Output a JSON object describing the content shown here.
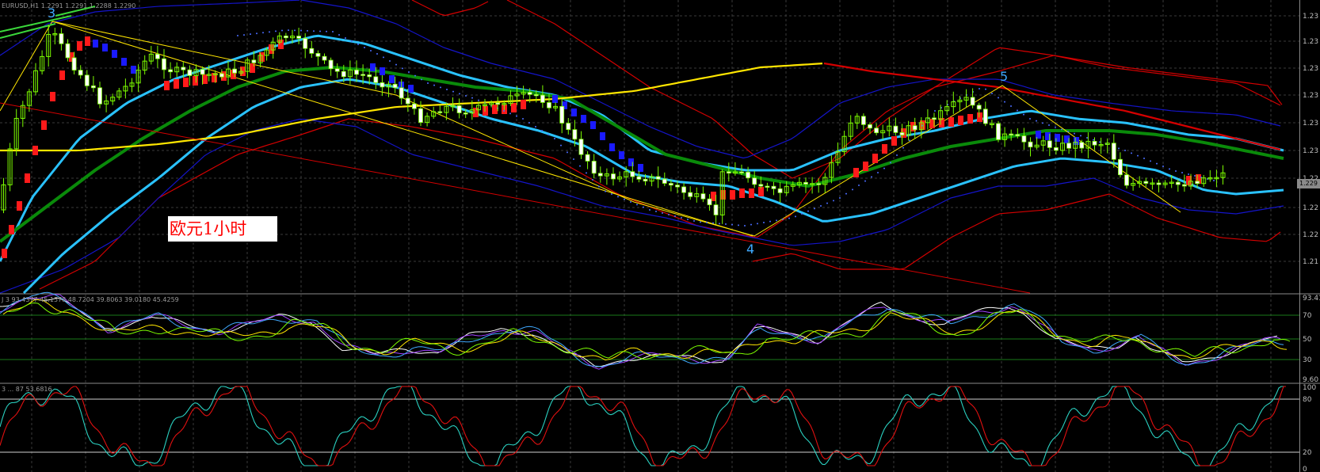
{
  "chart_data": [
    {
      "type": "candlestick",
      "header": "EURUSD,H1 1.2291 1.2291 1.2288 1.2290",
      "y_ticks": [
        "1.23",
        "1.23",
        "1.23",
        "1.23",
        "1.23",
        "1.23",
        "1.22",
        "1.22",
        "1.22",
        "1.21"
      ],
      "current_price": "1.229",
      "annotation": "欧元1小时",
      "wave_labels": [
        "3",
        "4",
        "5"
      ],
      "colors": {
        "bull": "#7cfc00",
        "bear": "#ffffff",
        "upper_band": "#1414c8",
        "outer_band": "#d40000",
        "inner_band": "#2ac2ff",
        "ma_green": "#0a8a0a",
        "ma_yellow": "#ffe600",
        "grid": "#3a3a3a",
        "sar_red": "#ff1a1a",
        "sar_blue": "#1a1aff"
      }
    },
    {
      "type": "line",
      "header": "J 3 93.4377 45.1578 48.7204 39.8063 39.0180 45.4259",
      "y_ticks": [
        "93.41",
        "70",
        "50",
        "30",
        "9.60"
      ],
      "levels": [
        70,
        50,
        30
      ],
      "colors": {
        "lines": [
          "#ffffff",
          "#a040ff",
          "#3fa9ff",
          "#ffe600",
          "#7cfc00"
        ],
        "levels": "#1a7a1a"
      }
    },
    {
      "type": "line",
      "header": "3 ... 87 53.6816",
      "y_ticks": [
        "100",
        "80",
        "20",
        "0"
      ],
      "levels": [
        80,
        20
      ],
      "colors": {
        "main": "#2ad0c0",
        "signal": "#e01010",
        "levels": "#d0d0d0"
      }
    }
  ]
}
